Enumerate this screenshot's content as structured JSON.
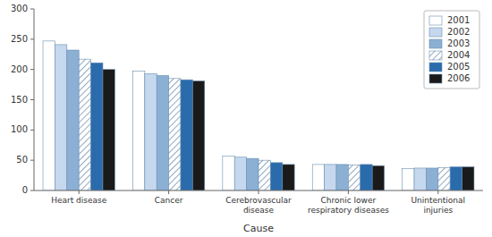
{
  "chart_data": {
    "type": "bar",
    "xlabel": "Cause",
    "categories": [
      "Heart disease",
      "Cancer",
      "Cerebrovascular\ndisease",
      "Chronic lower\nrespiratory diseases",
      "Unintentional\ninjuries"
    ],
    "series": [
      {
        "name": "2001",
        "color": "#ffffff",
        "values": [
          247,
          197,
          57,
          43,
          36
        ]
      },
      {
        "name": "2002",
        "color": "#c5d8ee",
        "values": [
          241,
          193,
          55,
          43,
          37
        ]
      },
      {
        "name": "2003",
        "color": "#8cafd4",
        "values": [
          232,
          190,
          53,
          43,
          37
        ]
      },
      {
        "name": "2004",
        "color": "#ffffff",
        "values": [
          217,
          185,
          50,
          42,
          38
        ]
      },
      {
        "name": "2005",
        "color": "#2a6bac",
        "values": [
          211,
          183,
          46,
          43,
          39
        ]
      },
      {
        "name": "2006",
        "color": "#1a1a1a",
        "values": [
          200,
          181,
          43,
          41,
          39
        ]
      }
    ],
    "ylim": [
      0,
      300
    ],
    "yticks": [
      0,
      50,
      100,
      150,
      200,
      250,
      300
    ],
    "grid": false,
    "legend": "upper right"
  }
}
